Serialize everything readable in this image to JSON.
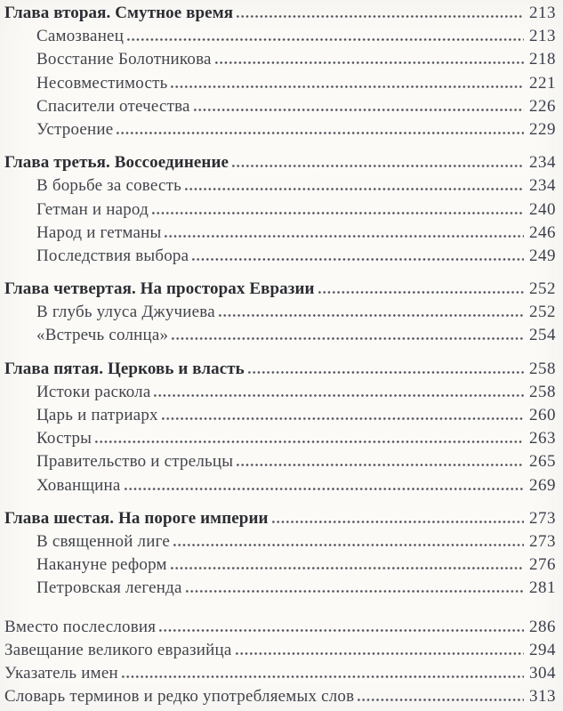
{
  "page": {
    "background_color": "#fbfaf7",
    "text_color": "#42444b",
    "header_color": "#2b2d32",
    "page_number_color": "#3b3f4a",
    "leader_dot_color": "#4e5057"
  },
  "toc": {
    "sections": [
      {
        "header": {
          "label": "Глава вторая. Смутное время",
          "page": "213"
        },
        "items": [
          {
            "label": "Самозванец",
            "page": "213"
          },
          {
            "label": "Восстание Болотникова",
            "page": "218"
          },
          {
            "label": "Несовместимость",
            "page": "221"
          },
          {
            "label": "Спасители отечества",
            "page": "226"
          },
          {
            "label": "Устроение",
            "page": "229"
          }
        ]
      },
      {
        "header": {
          "label": "Глава третья. Воссоединение",
          "page": "234"
        },
        "items": [
          {
            "label": "В борьбе за совесть",
            "page": "234"
          },
          {
            "label": "Гетман и народ",
            "page": "240"
          },
          {
            "label": "Народ и гетманы",
            "page": "246"
          },
          {
            "label": "Последствия выбора",
            "page": "249"
          }
        ]
      },
      {
        "header": {
          "label": "Глава четвертая. На просторах Евразии",
          "page": "252"
        },
        "items": [
          {
            "label": "В глубь улуса Джучиева",
            "page": "252"
          },
          {
            "label": "«Встречь солнца»",
            "page": "254"
          }
        ]
      },
      {
        "header": {
          "label": "Глава пятая. Церковь и власть",
          "page": "258"
        },
        "items": [
          {
            "label": "Истоки раскола",
            "page": "258"
          },
          {
            "label": "Царь и патриарх",
            "page": "260"
          },
          {
            "label": "Костры",
            "page": "263"
          },
          {
            "label": "Правительство и стрельцы",
            "page": "265"
          },
          {
            "label": "Хованщина",
            "page": "269"
          }
        ]
      },
      {
        "header": {
          "label": "Глава шестая. На пороге империи",
          "page": "273"
        },
        "items": [
          {
            "label": "В священной лиге",
            "page": "273"
          },
          {
            "label": "Накануне реформ",
            "page": "276"
          },
          {
            "label": "Петровская легенда",
            "page": "281"
          }
        ]
      }
    ],
    "back_matter": [
      {
        "label": "Вместо послесловия",
        "page": "286"
      },
      {
        "label": "Завещание великого евразийца",
        "page": "294"
      },
      {
        "label": "Указатель имен",
        "page": "304"
      },
      {
        "label": "Словарь терминов и редко употребляемых слов",
        "page": "313"
      }
    ]
  }
}
